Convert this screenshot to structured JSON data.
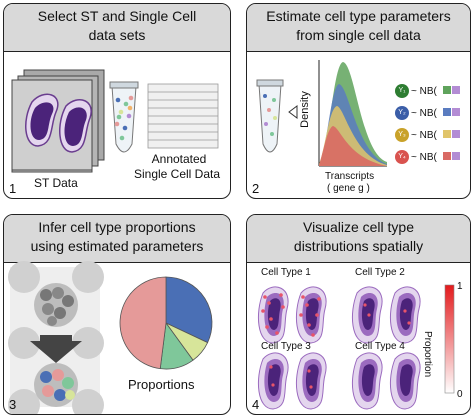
{
  "panels": [
    {
      "title_lines": [
        "Select ST and Single Cell",
        "data sets"
      ],
      "labels": {
        "st": "ST Data",
        "sc_line1": "Annotated",
        "sc_line2": "Single Cell Data"
      },
      "number": "1"
    },
    {
      "title_lines": [
        "Estimate cell type parameters",
        "from single cell data"
      ],
      "labels": {
        "ylabel": "Density",
        "xlabel": "Transcripts",
        "gene": "( gene g )"
      },
      "params": [
        {
          "sym": "Y₁",
          "dist": "~ NB(",
          "color": "#2e7d32"
        },
        {
          "sym": "Y₂",
          "dist": "~ NB(",
          "color": "#3b5ea8"
        },
        {
          "sym": "Y₃",
          "dist": "~ NB(",
          "color": "#c9a22a"
        },
        {
          "sym": "Y₄",
          "dist": "~ NB(",
          "color": "#d9534f"
        }
      ],
      "number": "2"
    },
    {
      "title_lines": [
        "Infer cell type proportions",
        "using estimated parameters"
      ],
      "labels": {
        "proportions": "Proportions"
      },
      "pie": [
        {
          "value": 0.32,
          "color": "#4a6fb5"
        },
        {
          "value": 0.08,
          "color": "#d7e59a"
        },
        {
          "value": 0.12,
          "color": "#7fc79a"
        },
        {
          "value": 0.48,
          "color": "#e59a99"
        }
      ],
      "number": "3"
    },
    {
      "title_lines": [
        "Visualize cell type",
        "distributions spatially"
      ],
      "cell_types": [
        "Cell Type 1",
        "Cell Type 2",
        "Cell Type 3",
        "Cell Type 4"
      ],
      "colorbar": {
        "label": "Proportion",
        "max": "1",
        "min": "0",
        "top_color": "#e31a1c",
        "bottom_color": "#ffffff"
      },
      "number": "4"
    }
  ],
  "colors": {
    "tissue_outer": "#e4d6ee",
    "tissue_mid": "#9b6bbf",
    "tissue_inner": "#4b237a",
    "header_gray": "#d9d9d9"
  }
}
